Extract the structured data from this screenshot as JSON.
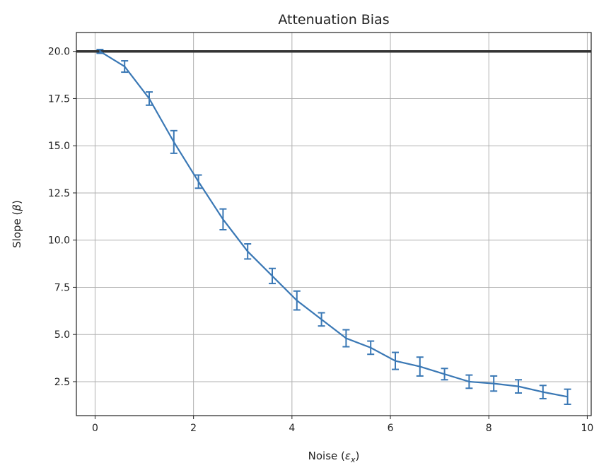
{
  "chart_data": {
    "type": "line",
    "title": "Attenuation Bias",
    "xlabel": "Noise (ε_x)",
    "ylabel": "Slope (β)",
    "xlim": [
      -0.38,
      10.08
    ],
    "ylim": [
      0.7,
      21.0
    ],
    "xticks": [
      0,
      2,
      4,
      6,
      8,
      10
    ],
    "xtick_labels": [
      "0",
      "2",
      "4",
      "6",
      "8",
      "10"
    ],
    "yticks": [
      2.5,
      5.0,
      7.5,
      10.0,
      12.5,
      15.0,
      17.5,
      20.0
    ],
    "ytick_labels": [
      "2.5",
      "5.0",
      "7.5",
      "10.0",
      "12.5",
      "15.0",
      "17.5",
      "20.0"
    ],
    "grid": true,
    "reference_line": {
      "y": 20.0,
      "color": "#333333"
    },
    "series": [
      {
        "color": "#3a78b5",
        "x": [
          0.1,
          0.6,
          1.1,
          1.6,
          2.1,
          2.6,
          3.1,
          3.6,
          4.1,
          4.6,
          5.1,
          5.6,
          6.1,
          6.6,
          7.1,
          7.6,
          8.1,
          8.6,
          9.1,
          9.6
        ],
        "y": [
          20.0,
          19.2,
          17.5,
          15.2,
          13.1,
          11.1,
          9.4,
          8.1,
          6.8,
          5.8,
          4.8,
          4.3,
          3.6,
          3.3,
          2.9,
          2.5,
          2.4,
          2.25,
          1.95,
          1.7
        ],
        "yerr": [
          0.1,
          0.3,
          0.35,
          0.6,
          0.35,
          0.55,
          0.4,
          0.4,
          0.5,
          0.35,
          0.45,
          0.35,
          0.45,
          0.5,
          0.3,
          0.35,
          0.4,
          0.35,
          0.35,
          0.4
        ]
      }
    ]
  }
}
